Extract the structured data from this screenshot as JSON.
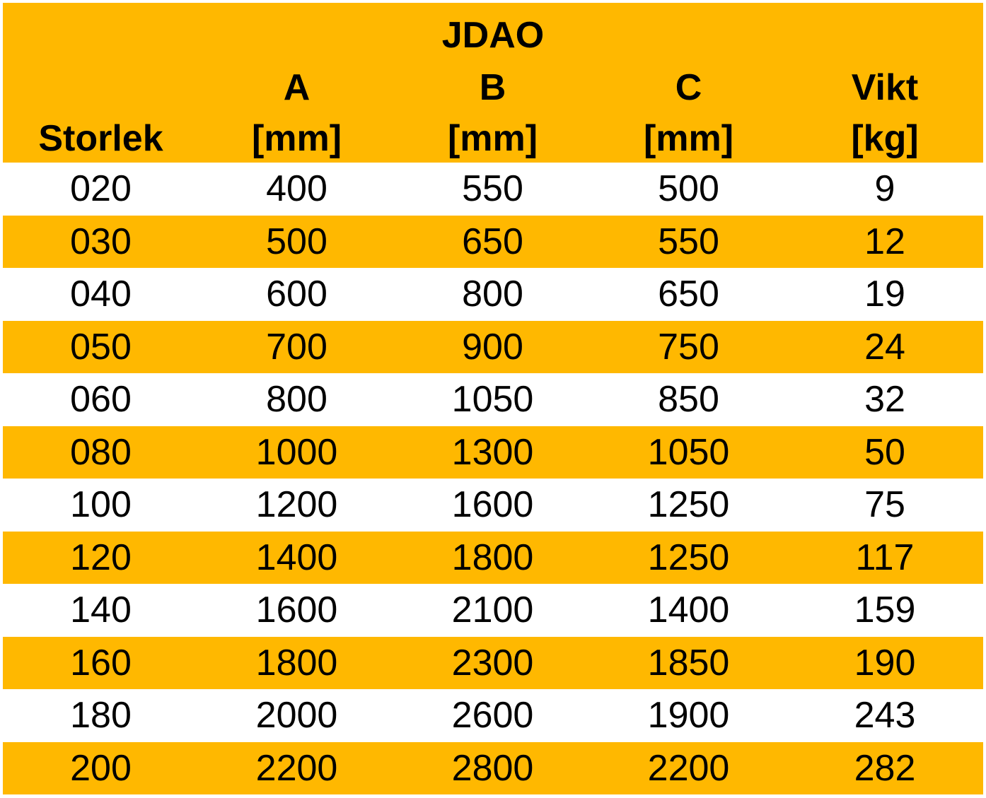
{
  "table": {
    "title": "JDAO",
    "headers": [
      {
        "top": "",
        "bottom": "Storlek"
      },
      {
        "top": "A",
        "bottom": "[mm]"
      },
      {
        "top": "B",
        "bottom": "[mm]"
      },
      {
        "top": "C",
        "bottom": "[mm]"
      },
      {
        "top": "Vikt",
        "bottom": "[kg]"
      }
    ],
    "rows": [
      [
        "020",
        "400",
        "550",
        "500",
        "9"
      ],
      [
        "030",
        "500",
        "650",
        "550",
        "12"
      ],
      [
        "040",
        "600",
        "800",
        "650",
        "19"
      ],
      [
        "050",
        "700",
        "900",
        "750",
        "24"
      ],
      [
        "060",
        "800",
        "1050",
        "850",
        "32"
      ],
      [
        "080",
        "1000",
        "1300",
        "1050",
        "50"
      ],
      [
        "100",
        "1200",
        "1600",
        "1250",
        "75"
      ],
      [
        "120",
        "1400",
        "1800",
        "1250",
        "117"
      ],
      [
        "140",
        "1600",
        "2100",
        "1400",
        "159"
      ],
      [
        "160",
        "1800",
        "2300",
        "1850",
        "190"
      ],
      [
        "180",
        "2000",
        "2600",
        "1900",
        "243"
      ],
      [
        "200",
        "2200",
        "2800",
        "2200",
        "282"
      ]
    ]
  },
  "colors": {
    "header_bg": "#FFB800",
    "stripe_bg": "#FFB800",
    "plain_bg": "#FFFFFF",
    "text": "#000000"
  }
}
